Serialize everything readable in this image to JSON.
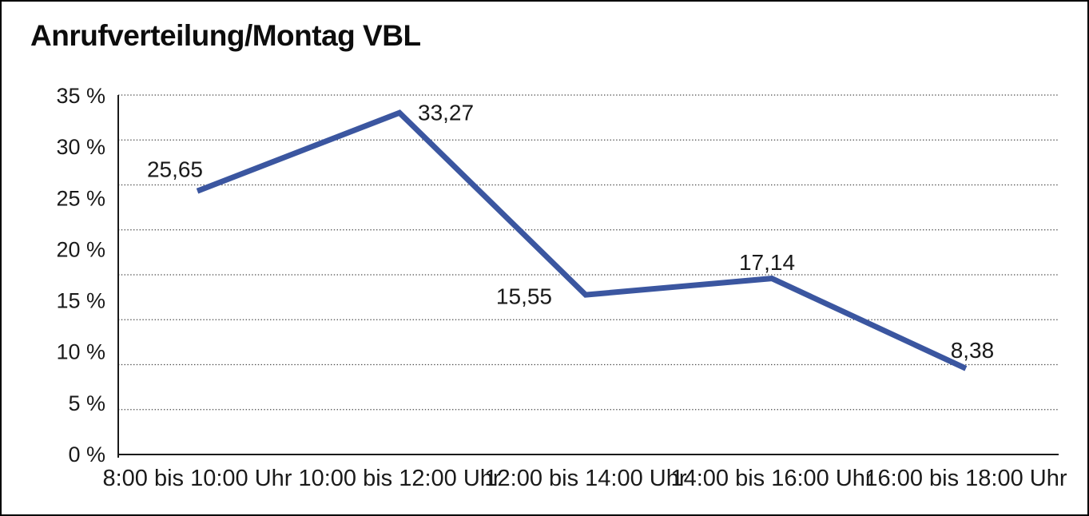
{
  "title": "Anrufverteilung/Montag VBL",
  "chart_data": {
    "type": "line",
    "title": "Anrufverteilung/Montag VBL",
    "categories": [
      "8:00 bis 10:00 Uhr",
      "10:00 bis 12:00 Uhr",
      "12:00 bis 14:00 Uhr",
      "14:00 bis 16:00 Uhr",
      "16:00 bis 18:00 Uhr"
    ],
    "values": [
      25.65,
      33.27,
      15.55,
      17.14,
      8.38
    ],
    "value_labels": [
      "25,65",
      "33,27",
      "15,55",
      "17,14",
      "8,38"
    ],
    "xlabel": "",
    "ylabel": "",
    "ylim": [
      0,
      35
    ],
    "ytick_labels_top_to_bottom": [
      "35 %",
      "30 %",
      "25 %",
      "20 %",
      "15 %",
      "10 %",
      "5 %",
      "0 %"
    ],
    "grid": "horizontal-dotted",
    "gridline_count": 8,
    "legend_position": "none",
    "series_name": "Anrufverteilung Montag VBL"
  },
  "colors": {
    "line": "#3B56A0",
    "axis": "#1a1a1a",
    "grid": "#4a4a4a",
    "text": "#1a1a1a",
    "background": "#ffffff",
    "frame_border": "#000000"
  }
}
